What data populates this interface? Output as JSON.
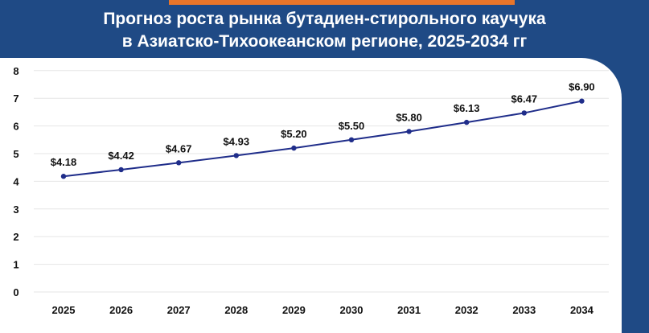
{
  "title_line1": "Прогноз роста рынка бутадиен-стирольного каучука",
  "title_line2": "в Азиатско-Тихоокеанском регионе, 2025-2034 гг",
  "colors": {
    "background": "#1f4a85",
    "accent": "#e8752a",
    "line": "#1f2d8a",
    "card": "#ffffff"
  },
  "chart_data": {
    "type": "line",
    "categories": [
      "2025",
      "2026",
      "2027",
      "2028",
      "2029",
      "2030",
      "2031",
      "2032",
      "2033",
      "2034"
    ],
    "values": [
      4.18,
      4.42,
      4.67,
      4.93,
      5.2,
      5.5,
      5.8,
      6.13,
      6.47,
      6.9
    ],
    "data_labels": [
      "$4.18",
      "$4.42",
      "$4.67",
      "$4.93",
      "$5.20",
      "$5.50",
      "$5.80",
      "$6.13",
      "$6.47",
      "$6.90"
    ],
    "yticks": [
      "0",
      "1",
      "2",
      "3",
      "4",
      "5",
      "6",
      "7",
      "8"
    ],
    "ylim": [
      0,
      8
    ],
    "grid": true,
    "legend": "none"
  }
}
